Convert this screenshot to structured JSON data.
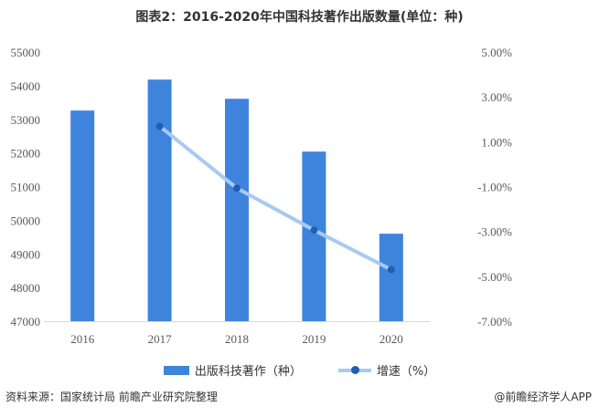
{
  "chart_data": {
    "type": "bar+line",
    "title": "图表2：2016-2020年中国科技著作出版数量(单位：种)",
    "categories": [
      "2016",
      "2017",
      "2018",
      "2019",
      "2020"
    ],
    "series": [
      {
        "name": "出版科技著作（种）",
        "type": "bar",
        "axis": "left",
        "values": [
          53260,
          54180,
          53610,
          52040,
          49600
        ],
        "color": "#3f84dc"
      },
      {
        "name": "增速（%）",
        "type": "line",
        "axis": "right",
        "values": [
          null,
          1.69,
          -1.07,
          -2.94,
          -4.7
        ],
        "color": "#a8c9f2",
        "marker_color": "#1f5fb4"
      }
    ],
    "ylim_left": [
      47000,
      55000
    ],
    "yticks_left": [
      "47000",
      "48000",
      "49000",
      "50000",
      "51000",
      "52000",
      "53000",
      "54000",
      "55000"
    ],
    "ylim_right": [
      -7,
      5
    ],
    "yticks_right": [
      "-7.00%",
      "-5.00%",
      "-3.00%",
      "-1.00%",
      "1.00%",
      "3.00%",
      "5.00%"
    ],
    "grid": false,
    "legend_position": "bottom"
  },
  "footer": {
    "source": "资料来源：国家统计局 前瞻产业研究院整理",
    "brand": "@前瞻经济学人APP"
  }
}
